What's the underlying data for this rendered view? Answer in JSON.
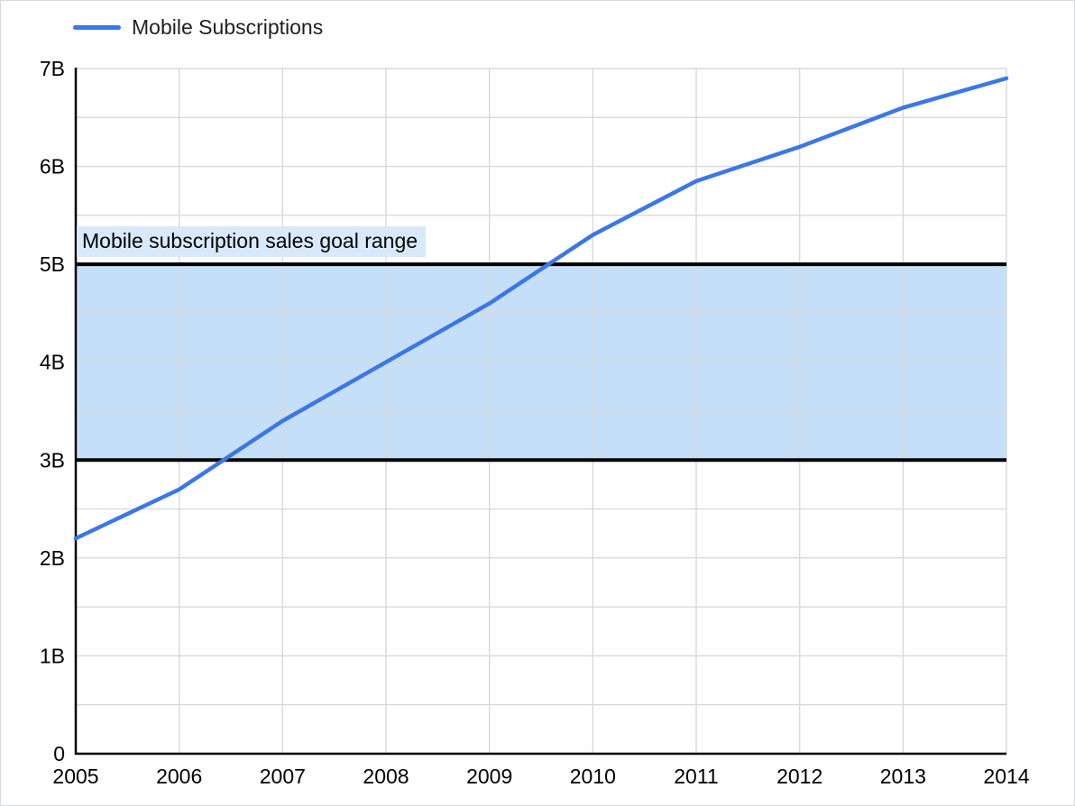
{
  "legend": {
    "items": [
      {
        "label": "Mobile Subscriptions",
        "color": "#3b78e5"
      }
    ]
  },
  "colors": {
    "line": "#3b78e5",
    "band_fill": "#c6dff8",
    "band_border": "#000000",
    "annotation_bg": "#d9e9fc",
    "grid": "#d9d9d9",
    "axis": "#000000",
    "text": "#000000",
    "background": "#ffffff",
    "canvas_border": "#d8dadd"
  },
  "chart_data": {
    "type": "line",
    "title": "",
    "xlabel": "",
    "ylabel": "",
    "x": [
      2005,
      2006,
      2007,
      2008,
      2009,
      2010,
      2011,
      2012,
      2013,
      2014
    ],
    "x_tick_labels": [
      "2005",
      "2006",
      "2007",
      "2008",
      "2009",
      "2010",
      "2011",
      "2012",
      "2013",
      "2014"
    ],
    "series": [
      {
        "name": "Mobile Subscriptions",
        "values": [
          2.2,
          2.7,
          3.4,
          4.0,
          4.6,
          5.3,
          5.85,
          6.2,
          6.6,
          6.9
        ]
      }
    ],
    "ylim": [
      0,
      7
    ],
    "y_tick_values": [
      0,
      1,
      2,
      3,
      4,
      5,
      6,
      7
    ],
    "y_tick_labels": [
      "0",
      "1B",
      "2B",
      "3B",
      "4B",
      "5B",
      "6B",
      "7B"
    ],
    "minor_gridline_step": 0.5,
    "grid": true,
    "legend_position": "top-left",
    "annotation": {
      "label": "Mobile subscription sales goal range",
      "band_from": 3,
      "band_to": 5
    }
  }
}
